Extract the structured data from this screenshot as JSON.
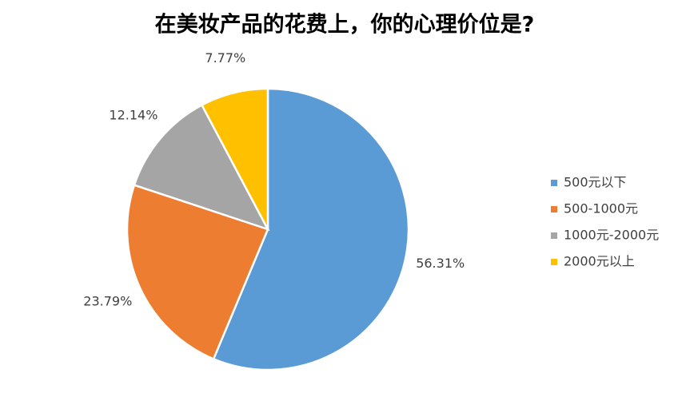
{
  "chart_data": {
    "type": "pie",
    "title": "在美妆产品的花费上，你的心理价位是?",
    "categories": [
      "500元以下",
      "500-1000元",
      "1000元-2000元",
      "2000元以上"
    ],
    "values": [
      56.31,
      23.79,
      12.14,
      7.77
    ],
    "value_labels": [
      "56.31%",
      "23.79%",
      "12.14%",
      "7.77%"
    ],
    "colors": [
      "#5b9bd5",
      "#ed7d31",
      "#a5a5a5",
      "#ffc000"
    ],
    "legend": "right"
  }
}
